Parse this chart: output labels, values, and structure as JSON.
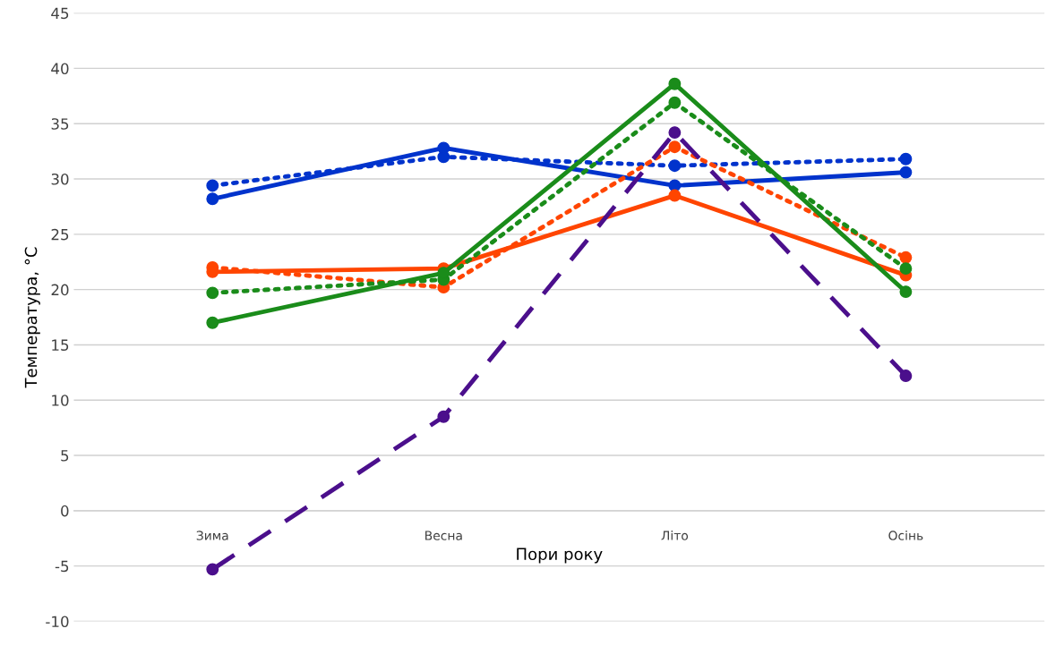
{
  "chart_data": {
    "type": "line",
    "xlabel": "Пори року",
    "ylabel": "Температура, °C",
    "categories": [
      "Зима",
      "Весна",
      "Літо",
      "Осінь"
    ],
    "ylim": [
      -10,
      45
    ],
    "yticks": [
      -10,
      -5,
      0,
      5,
      10,
      15,
      20,
      25,
      30,
      35,
      40,
      45
    ],
    "grid": "y",
    "legend": false,
    "marker": "circle",
    "series": [
      {
        "color": "#0033cc",
        "line_style": "dotted",
        "values": [
          29.4,
          32.0,
          31.2,
          31.8
        ]
      },
      {
        "color": "#0033cc",
        "line_style": "solid",
        "values": [
          28.2,
          32.8,
          29.4,
          30.6
        ]
      },
      {
        "color": "#ff4500",
        "line_style": "dotted",
        "values": [
          22.0,
          20.2,
          32.9,
          22.9
        ]
      },
      {
        "color": "#ff4500",
        "line_style": "solid",
        "values": [
          21.6,
          21.9,
          28.5,
          21.3
        ]
      },
      {
        "color": "#1a8c1a",
        "line_style": "dotted",
        "values": [
          19.7,
          20.9,
          36.9,
          21.9
        ]
      },
      {
        "color": "#1a8c1a",
        "line_style": "solid",
        "values": [
          17.0,
          21.5,
          38.6,
          19.8
        ]
      },
      {
        "color": "#4b0f8c",
        "line_style": "dashed",
        "values": [
          -5.3,
          8.5,
          34.2,
          12.2
        ]
      }
    ]
  }
}
